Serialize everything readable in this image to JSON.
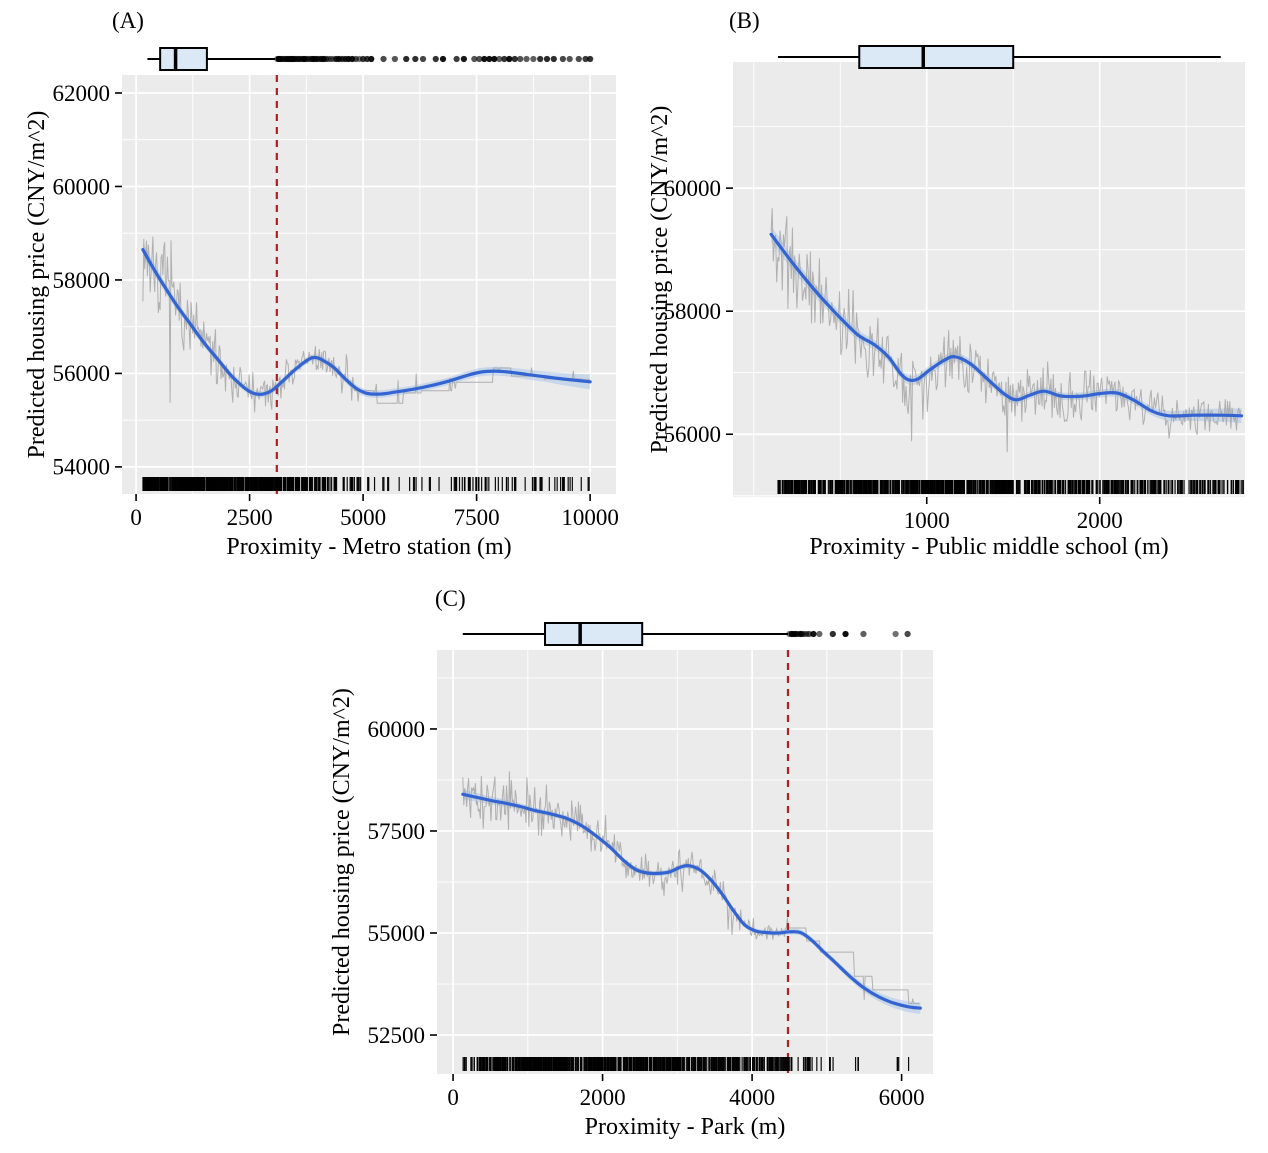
{
  "figure": {
    "background": "#ffffff"
  },
  "colors": {
    "panel_bg": "#EBEBEB",
    "grid_major": "#FFFFFF",
    "grid_minor": "#FFFFFF",
    "smooth_line": "#3464D2",
    "ribbon": "#A9C7E8",
    "gray_line": "#A6A6A6",
    "vline": "#B01F24",
    "box_fill": "#DBE8F6",
    "box_stroke": "#000000",
    "rug": "#000000",
    "text": "#000000"
  },
  "chart_data": [
    {
      "id": "A",
      "type": "line",
      "panel_label": "(A)",
      "xlabel": "Proximity - Metro station (m)",
      "ylabel": "Predicted housing price (CNY/m^2)",
      "x_ticks": [
        0,
        2500,
        5000,
        7500,
        10000
      ],
      "y_ticks": [
        54000,
        56000,
        58000,
        60000,
        62000
      ],
      "x_minor": [
        1250,
        3750,
        6250,
        8750
      ],
      "y_minor": [
        55000,
        57000,
        59000,
        61000
      ],
      "x_domain": [
        -310,
        10570
      ],
      "y_domain": [
        53420,
        62385
      ],
      "vline": 3100,
      "smooth": [
        [
          150,
          58650
        ],
        [
          350,
          58300
        ],
        [
          600,
          57900
        ],
        [
          900,
          57450
        ],
        [
          1200,
          57050
        ],
        [
          1500,
          56650
        ],
        [
          1800,
          56300
        ],
        [
          2100,
          55950
        ],
        [
          2400,
          55680
        ],
        [
          2600,
          55570
        ],
        [
          2800,
          55560
        ],
        [
          3000,
          55640
        ],
        [
          3200,
          55810
        ],
        [
          3500,
          56080
        ],
        [
          3800,
          56300
        ],
        [
          3950,
          56340
        ],
        [
          4100,
          56290
        ],
        [
          4350,
          56130
        ],
        [
          4600,
          55890
        ],
        [
          4850,
          55680
        ],
        [
          5100,
          55570
        ],
        [
          5400,
          55560
        ],
        [
          5700,
          55600
        ],
        [
          6100,
          55660
        ],
        [
          6500,
          55740
        ],
        [
          6900,
          55840
        ],
        [
          7300,
          55960
        ],
        [
          7600,
          56030
        ],
        [
          7900,
          56050
        ],
        [
          8200,
          56030
        ],
        [
          8600,
          55980
        ],
        [
          9000,
          55930
        ],
        [
          9400,
          55880
        ],
        [
          9700,
          55850
        ],
        [
          10000,
          55820
        ]
      ],
      "ribbon": [
        [
          150,
          140
        ],
        [
          1000,
          90
        ],
        [
          2500,
          70
        ],
        [
          4000,
          70
        ],
        [
          5000,
          80
        ],
        [
          7000,
          80
        ],
        [
          9000,
          110
        ],
        [
          10000,
          160
        ]
      ],
      "boxplot": {
        "whisker_min": 250,
        "q1": 530,
        "median": 870,
        "q3": 1560,
        "whisker_max": 3060,
        "outliers": [
          3110,
          3140,
          3170,
          3200,
          3230,
          3260,
          3290,
          3320,
          3350,
          3380,
          3410,
          3440,
          3470,
          3500,
          3530,
          3560,
          3590,
          3620,
          3660,
          3700,
          3740,
          3780,
          3820,
          3860,
          3900,
          3940,
          3980,
          4030,
          4080,
          4130,
          4180,
          4230,
          4290,
          4350,
          4410,
          4470,
          4540,
          4610,
          4680,
          4760,
          4840,
          4920,
          5000,
          5090,
          5180,
          5450,
          5700,
          5950,
          6150,
          6320,
          6600,
          6760,
          7060,
          7220,
          7450,
          7560,
          7670,
          7780,
          7890,
          8000,
          8110,
          8220,
          8340,
          8460,
          8600,
          8750,
          8900,
          9050,
          9200,
          9400,
          9550,
          9750,
          9900,
          10000
        ]
      },
      "rug_segments": [
        {
          "from": 150,
          "to": 3100,
          "n": 520
        },
        {
          "from": 3100,
          "to": 3600,
          "n": 70
        },
        {
          "from": 3600,
          "to": 4300,
          "n": 45
        },
        {
          "from": 4300,
          "to": 5000,
          "n": 25
        },
        {
          "from": 5000,
          "to": 5600,
          "n": 8
        },
        {
          "from": 5600,
          "to": 7000,
          "n": 10
        },
        {
          "from": 7000,
          "to": 8000,
          "n": 26
        },
        {
          "from": 8000,
          "to": 9000,
          "n": 18
        },
        {
          "from": 9000,
          "to": 10000,
          "n": 14
        }
      ],
      "gray_line": {
        "seed": 7,
        "step": 20,
        "range": [
          150,
          10000
        ],
        "hold_start": 4800,
        "hold_min": 10,
        "hold_max": 45,
        "amp": [
          [
            150,
            2000
          ],
          [
            800,
            1600
          ],
          [
            1500,
            1200
          ],
          [
            2200,
            950
          ],
          [
            2800,
            800
          ],
          [
            3500,
            650
          ],
          [
            4200,
            500
          ],
          [
            5000,
            300
          ],
          [
            6000,
            220
          ],
          [
            7500,
            180
          ],
          [
            10000,
            140
          ]
        ]
      }
    },
    {
      "id": "B",
      "type": "line",
      "panel_label": "(B)",
      "xlabel": "Proximity - Public middle school (m)",
      "ylabel": "Predicted housing price (CNY/m^2)",
      "x_ticks": [
        1000,
        2000
      ],
      "y_ticks": [
        56000,
        58000,
        60000
      ],
      "x_minor": [
        0,
        500,
        1500,
        2500
      ],
      "y_minor": [
        55000,
        57000,
        59000,
        61000
      ],
      "x_domain": [
        -120,
        2840
      ],
      "y_domain": [
        54980,
        62050
      ],
      "vline": null,
      "smooth": [
        [
          100,
          59250
        ],
        [
          220,
          58800
        ],
        [
          350,
          58350
        ],
        [
          480,
          57950
        ],
        [
          600,
          57620
        ],
        [
          700,
          57450
        ],
        [
          780,
          57250
        ],
        [
          850,
          56980
        ],
        [
          900,
          56880
        ],
        [
          950,
          56900
        ],
        [
          1020,
          57050
        ],
        [
          1100,
          57200
        ],
        [
          1160,
          57260
        ],
        [
          1250,
          57150
        ],
        [
          1350,
          56900
        ],
        [
          1450,
          56650
        ],
        [
          1520,
          56560
        ],
        [
          1600,
          56640
        ],
        [
          1680,
          56700
        ],
        [
          1780,
          56620
        ],
        [
          1900,
          56620
        ],
        [
          2000,
          56660
        ],
        [
          2100,
          56670
        ],
        [
          2200,
          56550
        ],
        [
          2300,
          56380
        ],
        [
          2400,
          56300
        ],
        [
          2550,
          56310
        ],
        [
          2700,
          56310
        ],
        [
          2820,
          56300
        ]
      ],
      "ribbon": [
        [
          100,
          130
        ],
        [
          600,
          80
        ],
        [
          1200,
          70
        ],
        [
          1800,
          60
        ],
        [
          2300,
          70
        ],
        [
          2820,
          120
        ]
      ],
      "boxplot": {
        "whisker_min": 140,
        "q1": 610,
        "median": 980,
        "q3": 1500,
        "whisker_max": 2700,
        "outliers": []
      },
      "rug_segments": [
        {
          "from": 140,
          "to": 1500,
          "n": 520
        },
        {
          "from": 1500,
          "to": 2000,
          "n": 120
        },
        {
          "from": 2000,
          "to": 2400,
          "n": 90
        },
        {
          "from": 2400,
          "to": 2830,
          "n": 70
        }
      ],
      "gray_line": {
        "seed": 11,
        "step": 6.5,
        "range": [
          100,
          2820
        ],
        "hold_start": 99999,
        "hold_min": 8,
        "hold_max": 30,
        "amp": [
          [
            100,
            1700
          ],
          [
            400,
            1300
          ],
          [
            700,
            1100
          ],
          [
            1000,
            900
          ],
          [
            1400,
            800
          ],
          [
            1800,
            900
          ],
          [
            2200,
            700
          ],
          [
            2500,
            600
          ],
          [
            2820,
            500
          ]
        ]
      }
    },
    {
      "id": "C",
      "type": "line",
      "panel_label": "(C)",
      "xlabel": "Proximity - Park (m)",
      "ylabel": "Predicted housing price (CNY/m^2)",
      "x_ticks": [
        0,
        2000,
        4000,
        6000
      ],
      "y_ticks": [
        52500,
        55000,
        57500,
        60000
      ],
      "x_minor": [
        1000,
        3000,
        5000
      ],
      "y_minor": [
        53750,
        56250,
        58750,
        61250
      ],
      "x_domain": [
        -215,
        6420
      ],
      "y_domain": [
        51545,
        61935
      ],
      "vline": 4480,
      "smooth": [
        [
          130,
          58400
        ],
        [
          300,
          58330
        ],
        [
          500,
          58250
        ],
        [
          700,
          58180
        ],
        [
          900,
          58100
        ],
        [
          1100,
          58000
        ],
        [
          1300,
          57920
        ],
        [
          1500,
          57820
        ],
        [
          1700,
          57650
        ],
        [
          1900,
          57400
        ],
        [
          2100,
          57100
        ],
        [
          2300,
          56750
        ],
        [
          2450,
          56550
        ],
        [
          2600,
          56470
        ],
        [
          2750,
          56460
        ],
        [
          2900,
          56500
        ],
        [
          3050,
          56620
        ],
        [
          3150,
          56650
        ],
        [
          3300,
          56550
        ],
        [
          3450,
          56300
        ],
        [
          3600,
          55950
        ],
        [
          3750,
          55550
        ],
        [
          3900,
          55200
        ],
        [
          4050,
          55050
        ],
        [
          4200,
          55010
        ],
        [
          4350,
          55000
        ],
        [
          4500,
          55030
        ],
        [
          4650,
          55010
        ],
        [
          4800,
          54820
        ],
        [
          4950,
          54550
        ],
        [
          5100,
          54300
        ],
        [
          5300,
          53950
        ],
        [
          5500,
          53650
        ],
        [
          5700,
          53430
        ],
        [
          5900,
          53280
        ],
        [
          6100,
          53190
        ],
        [
          6250,
          53160
        ]
      ],
      "ribbon": [
        [
          130,
          120
        ],
        [
          1000,
          70
        ],
        [
          2000,
          60
        ],
        [
          3000,
          70
        ],
        [
          4000,
          60
        ],
        [
          4600,
          70
        ],
        [
          5200,
          80
        ],
        [
          6250,
          140
        ]
      ],
      "boxplot": {
        "whisker_min": 130,
        "q1": 1230,
        "median": 1700,
        "q3": 2530,
        "whisker_max": 4480,
        "outliers": [
          4500,
          4530,
          4560,
          4590,
          4620,
          4650,
          4680,
          4720,
          4760,
          4820,
          4900,
          5080,
          5250,
          5490,
          5920,
          6080
        ]
      },
      "rug_segments": [
        {
          "from": 130,
          "to": 320,
          "n": 10
        },
        {
          "from": 320,
          "to": 3100,
          "n": 520
        },
        {
          "from": 3100,
          "to": 3700,
          "n": 80
        },
        {
          "from": 3700,
          "to": 4200,
          "n": 55
        },
        {
          "from": 4200,
          "to": 4500,
          "n": 35
        },
        {
          "from": 4500,
          "to": 4800,
          "n": 12
        },
        {
          "from": 4800,
          "to": 5100,
          "n": 6
        },
        {
          "from": 5300,
          "to": 5500,
          "n": 3
        },
        {
          "from": 5900,
          "to": 6150,
          "n": 4
        }
      ],
      "gray_line": {
        "seed": 5,
        "step": 13,
        "range": [
          130,
          6250
        ],
        "hold_start": 4450,
        "hold_min": 10,
        "hold_max": 40,
        "amp": [
          [
            130,
            1500
          ],
          [
            600,
            1400
          ],
          [
            1200,
            1200
          ],
          [
            1800,
            1000
          ],
          [
            2400,
            850
          ],
          [
            3000,
            800
          ],
          [
            3600,
            700
          ],
          [
            4200,
            400
          ],
          [
            4450,
            250
          ],
          [
            6250,
            200
          ]
        ]
      }
    }
  ]
}
